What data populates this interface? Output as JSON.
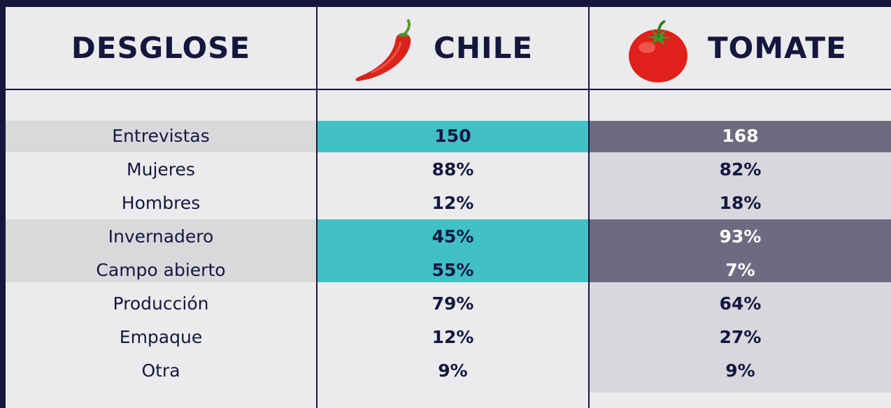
{
  "table": {
    "header": [
      "DESGLOSE",
      "CHILE",
      "TOMATE"
    ],
    "rows": [
      [
        "Entrevistas",
        "150",
        "168"
      ],
      [
        "Mujeres",
        "88%",
        "82%"
      ],
      [
        "Hombres",
        "12%",
        "18%"
      ],
      [
        "Invernadero",
        "45%",
        "93%"
      ],
      [
        "Campo abierto",
        "55%",
        "7%"
      ],
      [
        "Producción",
        "79%",
        "64%"
      ],
      [
        "Empaque",
        "12%",
        "27%"
      ],
      [
        "Otra",
        "9%",
        "9%"
      ]
    ]
  }
}
